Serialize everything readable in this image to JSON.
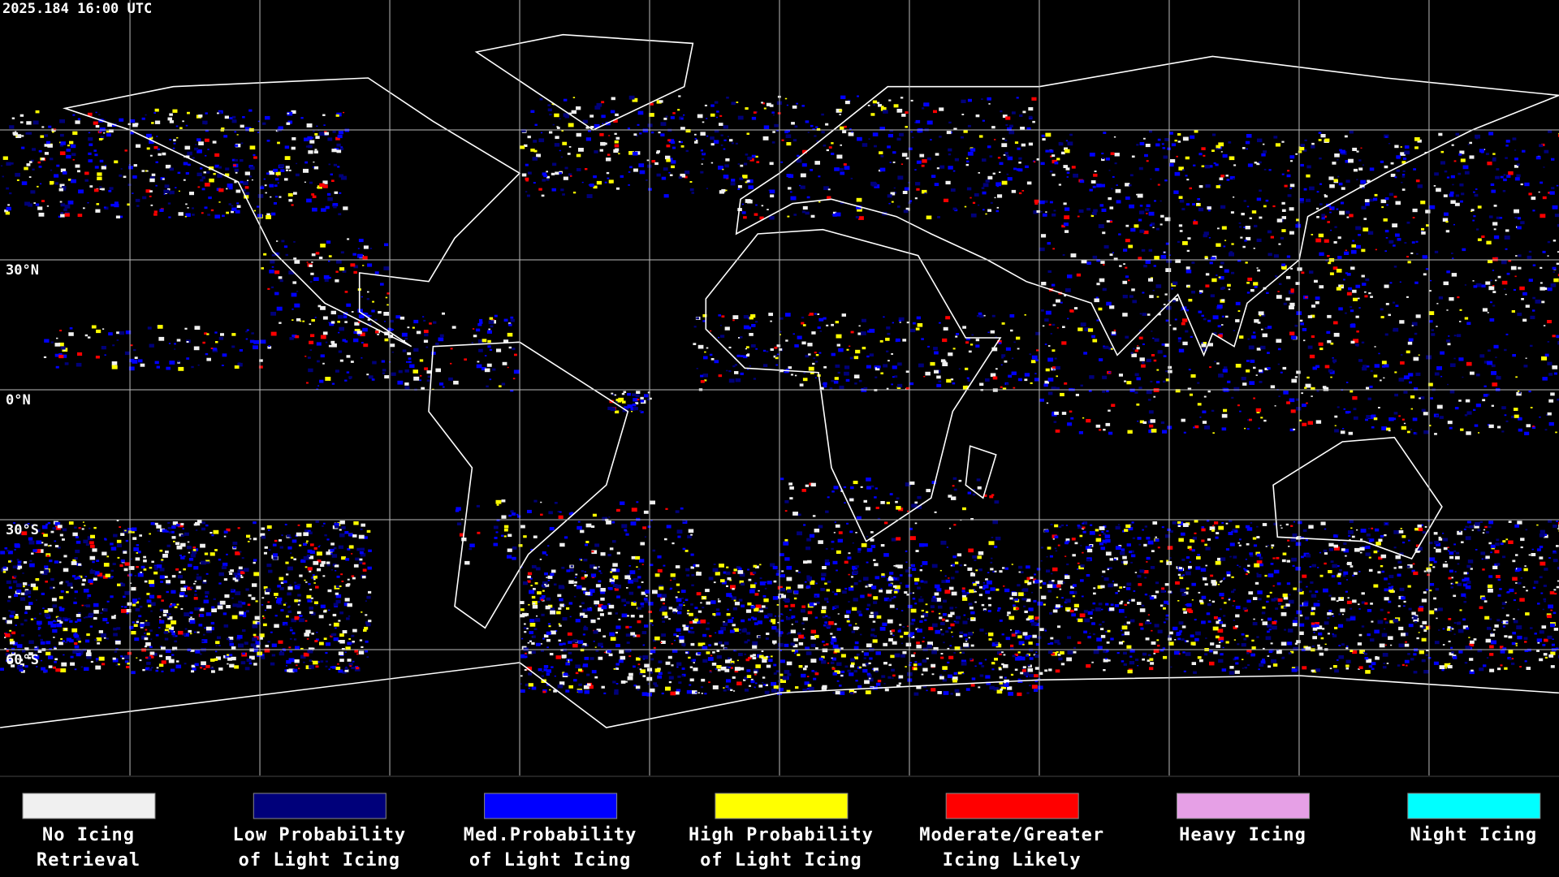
{
  "timestamp": "2025.184 16:00 UTC",
  "lat_labels": [
    "30°N",
    "0°N",
    "30°S",
    "60°S"
  ],
  "legend": [
    {
      "lines": [
        "No Icing",
        "Retrieval"
      ],
      "color": "#f0f0f0"
    },
    {
      "lines": [
        "Low Probability",
        "of Light Icing"
      ],
      "color": "#00007a"
    },
    {
      "lines": [
        "Med.Probability",
        "of Light Icing"
      ],
      "color": "#0000ff"
    },
    {
      "lines": [
        "High Probability",
        "of Light Icing"
      ],
      "color": "#ffff00"
    },
    {
      "lines": [
        "Moderate/Greater",
        "Icing Likely"
      ],
      "color": "#ff0000"
    },
    {
      "lines": [
        "Heavy Icing"
      ],
      "color": "#e6a0e6"
    },
    {
      "lines": [
        "Night Icing"
      ],
      "color": "#00ffff"
    }
  ]
}
